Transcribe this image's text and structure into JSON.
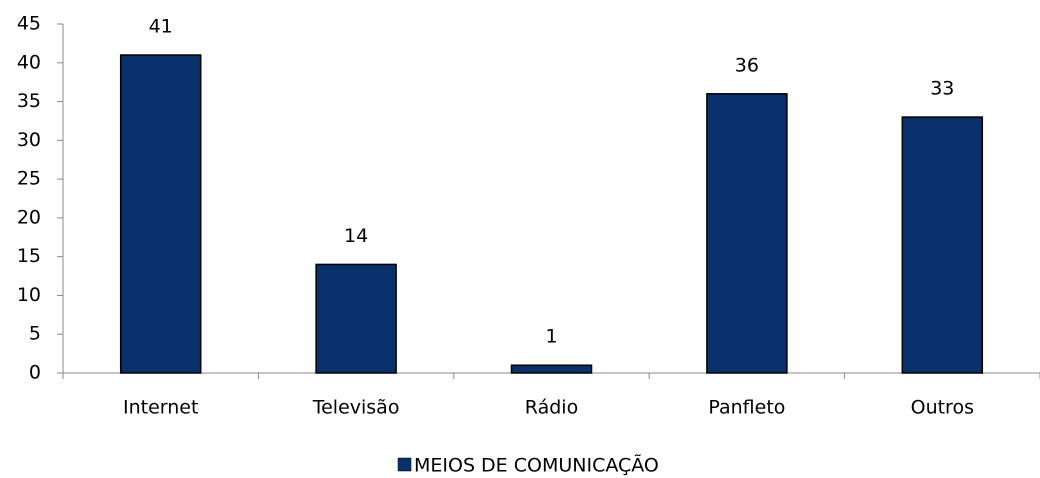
{
  "chart_data": {
    "type": "bar",
    "categories": [
      "Internet",
      "Televisão",
      "Rádio",
      "Panfleto",
      "Outros"
    ],
    "values": [
      41,
      14,
      1,
      36,
      33
    ],
    "color": "#08306b",
    "ylim": [
      0,
      45
    ],
    "yticks": [
      0,
      5,
      10,
      15,
      20,
      25,
      30,
      35,
      40,
      45
    ],
    "legend": {
      "position": "bottom",
      "label": "MEIOS DE COMUNICAÇÃO"
    },
    "grid": false
  }
}
